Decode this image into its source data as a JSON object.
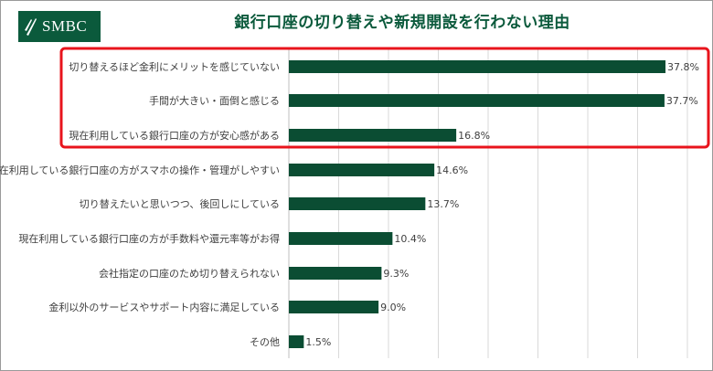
{
  "brand": {
    "logo_text": "SMBC",
    "color": "#0b5a3c"
  },
  "chart_data": {
    "type": "bar",
    "orientation": "horizontal",
    "title": "銀行口座の切り替えや新規開設を行わない理由",
    "categories": [
      "切り替えるほど金利にメリットを感じていない",
      "手間が大きい・面倒と感じる",
      "現在利用している銀行口座の方が安心感がある",
      "現在利用している銀行口座の方がスマホの操作・管理がしやすい",
      "切り替えたいと思いつつ、後回しにしている",
      "現在利用している銀行口座の方が手数料や還元率等がお得",
      "会社指定の口座のため切り替えられない",
      "金利以外のサービスやサポート内容に満足している",
      "その他"
    ],
    "values": [
      37.8,
      37.7,
      16.8,
      14.6,
      13.7,
      10.4,
      9.3,
      9.0,
      1.5
    ],
    "value_labels": [
      "37.8%",
      "37.7%",
      "16.8%",
      "14.6%",
      "13.7%",
      "10.4%",
      "9.3%",
      "9.0%",
      "1.5%"
    ],
    "xlim": [
      0,
      40
    ],
    "grid": "vertical",
    "bar_color": "#0b4d33",
    "highlight": {
      "top_n": 3,
      "color": "#e8141c"
    }
  }
}
